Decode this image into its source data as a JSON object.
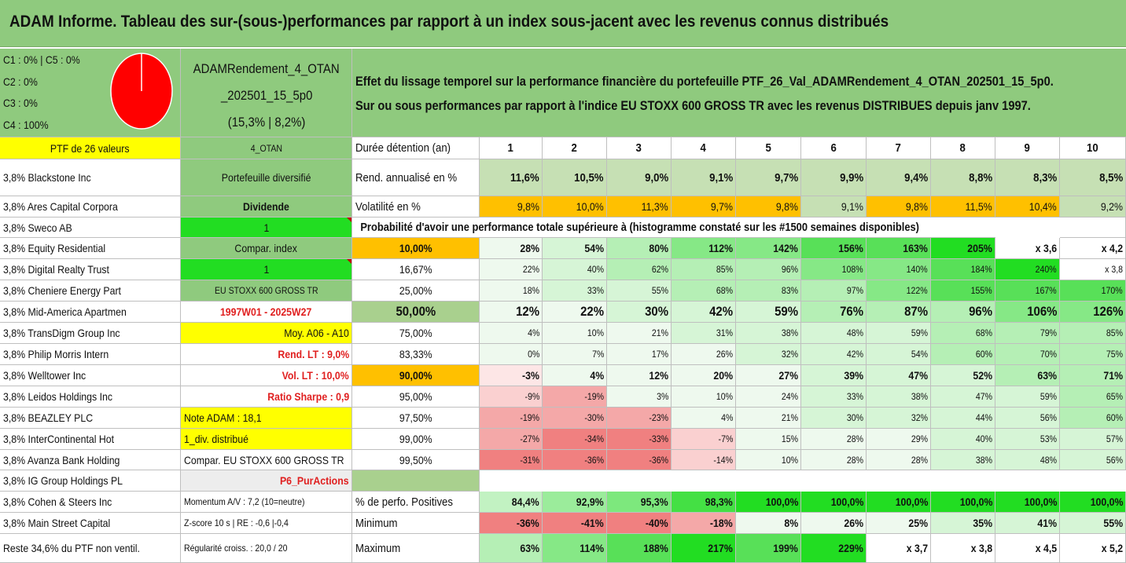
{
  "title": "ADAM Informe. Tableau des sur-(sous-)performances par rapport à un index sous-jacent avec les revenus connus distribués",
  "allocation_legend": [
    "C1 : 0% | C5 : 0%",
    "C2 : 0%",
    "C3 : 0%",
    "C4 : 100%"
  ],
  "pie": {
    "values": [
      0,
      0,
      0,
      100,
      0
    ],
    "color": "#ff0000"
  },
  "portfolio_name": [
    "ADAMRendement_4_OTAN",
    "_202501_15_5p0",
    "(15,3% | 8,2%)"
  ],
  "description": [
    "Effet du lissage temporel sur la performance financière du portefeuille PTF_26_Val_ADAMRendement_4_OTAN_202501_15_5p0.",
    "Sur ou sous performances par rapport à l'indice EU STOXX 600 GROSS TR avec les revenus DISTRIBUES depuis janv 1997."
  ],
  "ptf_header": "PTF de 26 valeurs",
  "ptf_code": "4_OTAN",
  "holdings": [
    "3,8% Blackstone Inc",
    "3,8% Ares Capital Corpora",
    "3,8% Sweco AB",
    "3,8% Equity Residential",
    "3,8% Digital Realty Trust",
    "3,8% Cheniere Energy Part",
    "3,8% Mid-America Apartmen",
    "3,8% TransDigm Group Inc",
    "3,8% Philip Morris Intern",
    "3,8% Welltower Inc",
    "3,8% Leidos Holdings Inc",
    "3,8% BEAZLEY PLC",
    "3,8% InterContinental Hot",
    "3,8% Avanza Bank Holding",
    "3,8% IG Group Holdings PL",
    "3,8% Cohen & Steers Inc",
    "3,8% Main Street Capital",
    "Reste 34,6% du PTF non ventil."
  ],
  "info_column": [
    "Portefeuille diversifié",
    "Dividende",
    "1",
    "Compar. index",
    "1",
    "EU STOXX 600 GROSS TR",
    "1997W01 - 2025W27",
    "Moy. A06 - A10",
    "Rend. LT : 9,0%",
    "Vol. LT : 10,0%",
    "Ratio Sharpe : 0,9",
    "Note ADAM : 18,1",
    "1_div. distribué",
    "Compar. EU STOXX 600 GROSS TR",
    "P6_PurActions",
    "Momentum A/V : 7,2 (10=neutre)",
    "Z-score 10 s | RE : -0,6 |-0,4",
    "Régularité croiss. : 20,0 / 20"
  ],
  "duration_label": "Durée détention (an)",
  "years": [
    "1",
    "2",
    "3",
    "4",
    "5",
    "6",
    "7",
    "8",
    "9",
    "10"
  ],
  "rend_label": "Rend. annualisé en %",
  "rend_values": [
    "11,6%",
    "10,5%",
    "9,0%",
    "9,1%",
    "9,7%",
    "9,9%",
    "9,4%",
    "8,8%",
    "8,3%",
    "8,5%"
  ],
  "vol_label": "Volatilité en %",
  "vol_values": [
    "9,8%",
    "10,0%",
    "11,3%",
    "9,7%",
    "9,8%",
    "9,1%",
    "9,8%",
    "11,5%",
    "10,4%",
    "9,2%"
  ],
  "prob_header": "Probabilité d'avoir une performance totale supérieure à (histogramme constaté sur les #1500 semaines disponibles)",
  "percentile_rows": [
    {
      "label": "10,00%",
      "values": [
        "28%",
        "54%",
        "80%",
        "112%",
        "142%",
        "156%",
        "163%",
        "205%",
        "x 3,6",
        "x 4,2"
      ]
    },
    {
      "label": "16,67%",
      "values": [
        "22%",
        "40%",
        "62%",
        "85%",
        "96%",
        "108%",
        "140%",
        "184%",
        "240%",
        "x 3,8"
      ]
    },
    {
      "label": "25,00%",
      "values": [
        "18%",
        "33%",
        "55%",
        "68%",
        "83%",
        "97%",
        "122%",
        "155%",
        "167%",
        "170%"
      ]
    },
    {
      "label": "50,00%",
      "values": [
        "12%",
        "22%",
        "30%",
        "42%",
        "59%",
        "76%",
        "87%",
        "96%",
        "106%",
        "126%"
      ]
    },
    {
      "label": "75,00%",
      "values": [
        "4%",
        "10%",
        "21%",
        "31%",
        "38%",
        "48%",
        "59%",
        "68%",
        "79%",
        "85%"
      ]
    },
    {
      "label": "83,33%",
      "values": [
        "0%",
        "7%",
        "17%",
        "26%",
        "32%",
        "42%",
        "54%",
        "60%",
        "70%",
        "75%"
      ]
    },
    {
      "label": "90,00%",
      "values": [
        "-3%",
        "4%",
        "12%",
        "20%",
        "27%",
        "39%",
        "47%",
        "52%",
        "63%",
        "71%"
      ]
    },
    {
      "label": "95,00%",
      "values": [
        "-9%",
        "-19%",
        "3%",
        "10%",
        "24%",
        "33%",
        "38%",
        "47%",
        "59%",
        "65%"
      ]
    },
    {
      "label": "97,50%",
      "values": [
        "-19%",
        "-30%",
        "-23%",
        "4%",
        "21%",
        "30%",
        "32%",
        "44%",
        "56%",
        "60%"
      ]
    },
    {
      "label": "99,00%",
      "values": [
        "-27%",
        "-34%",
        "-33%",
        "-7%",
        "15%",
        "28%",
        "29%",
        "40%",
        "53%",
        "57%"
      ]
    },
    {
      "label": "99,50%",
      "values": [
        "-31%",
        "-36%",
        "-36%",
        "-14%",
        "10%",
        "28%",
        "28%",
        "38%",
        "48%",
        "56%"
      ]
    }
  ],
  "stat_rows": [
    {
      "label": "% de perfo. Positives",
      "values": [
        "84,4%",
        "92,9%",
        "95,3%",
        "98,3%",
        "100,0%",
        "100,0%",
        "100,0%",
        "100,0%",
        "100,0%",
        "100,0%"
      ]
    },
    {
      "label": "Minimum",
      "values": [
        "-36%",
        "-41%",
        "-40%",
        "-18%",
        "8%",
        "26%",
        "25%",
        "35%",
        "41%",
        "55%"
      ]
    },
    {
      "label": "Maximum",
      "values": [
        "63%",
        "114%",
        "188%",
        "217%",
        "199%",
        "229%",
        "x 3,7",
        "x 3,8",
        "x 4,5",
        "x 5,2"
      ]
    }
  ],
  "colors": {
    "header_green": "#8fca7e",
    "bright_green": "#22dd22",
    "yellow": "#ffff00",
    "orange": "#ffc000",
    "light_green_rend": "#c6e0b4",
    "medium_green": "#a9d08e",
    "mint": "#e6f7e6"
  }
}
